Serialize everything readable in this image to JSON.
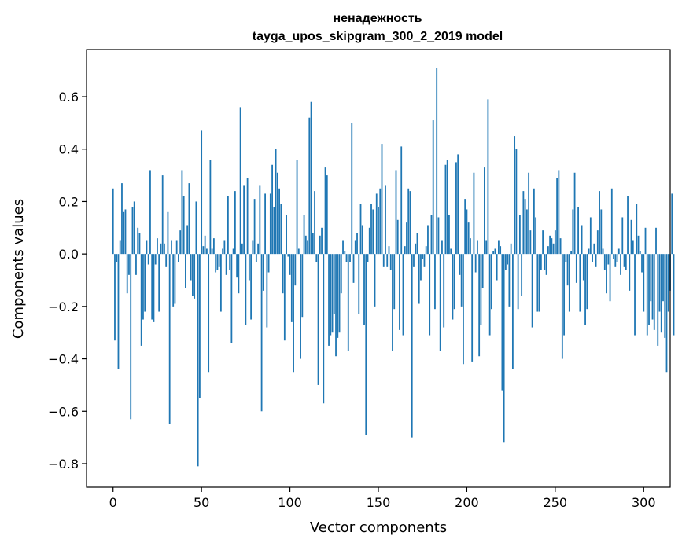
{
  "chart_data": {
    "type": "bar",
    "title": "ненадежность",
    "subtitle": "tayga_upos_skipgram_300_2_2019 model",
    "xlabel": "Vector components",
    "ylabel": "Components values",
    "xlim": [
      -15,
      315
    ],
    "ylim": [
      -0.89,
      0.78
    ],
    "xticks": [
      0,
      50,
      100,
      150,
      200,
      250,
      300
    ],
    "xtick_labels": [
      "0",
      "50",
      "100",
      "150",
      "200",
      "250",
      "300"
    ],
    "yticks": [
      -0.8,
      -0.6,
      -0.4,
      -0.2,
      0.0,
      0.2,
      0.4,
      0.6
    ],
    "ytick_labels": [
      "−0.8",
      "−0.6",
      "−0.4",
      "−0.2",
      "0.0",
      "0.2",
      "0.4",
      "0.6"
    ],
    "grid": false,
    "bar_color": "#1f77b4",
    "values": [
      0.25,
      -0.33,
      -0.03,
      -0.44,
      0.05,
      0.27,
      0.16,
      0.17,
      -0.15,
      -0.08,
      -0.63,
      0.18,
      0.2,
      -0.08,
      0.1,
      0.08,
      -0.35,
      -0.25,
      -0.22,
      0.05,
      -0.04,
      0.32,
      -0.25,
      -0.26,
      -0.04,
      0.06,
      -0.22,
      0.04,
      0.3,
      0.04,
      -0.05,
      0.16,
      -0.65,
      0.05,
      -0.2,
      -0.19,
      0.05,
      -0.03,
      0.09,
      0.32,
      0.22,
      -0.13,
      0.11,
      0.27,
      -0.1,
      -0.16,
      -0.17,
      0.2,
      -0.81,
      -0.55,
      0.47,
      0.03,
      0.07,
      0.02,
      -0.45,
      0.36,
      0.02,
      0.06,
      -0.07,
      -0.06,
      -0.05,
      -0.22,
      0.02,
      0.05,
      -0.08,
      0.22,
      -0.06,
      -0.34,
      0.02,
      0.24,
      -0.09,
      -0.15,
      0.56,
      0.04,
      0.26,
      -0.27,
      0.29,
      -0.1,
      -0.25,
      0.05,
      0.21,
      -0.03,
      0.04,
      0.26,
      -0.6,
      -0.14,
      0.23,
      -0.28,
      -0.07,
      0.23,
      0.34,
      0.18,
      0.4,
      0.31,
      0.25,
      0.19,
      -0.15,
      -0.33,
      0.15,
      -0.01,
      -0.08,
      -0.26,
      -0.45,
      -0.12,
      0.36,
      0.02,
      -0.4,
      -0.24,
      0.15,
      0.07,
      0.05,
      0.52,
      0.58,
      0.08,
      0.24,
      -0.03,
      -0.5,
      0.07,
      0.1,
      -0.57,
      0.33,
      0.3,
      -0.35,
      -0.31,
      -0.3,
      -0.23,
      -0.39,
      -0.32,
      -0.3,
      -0.15,
      0.05,
      0.01,
      -0.03,
      -0.37,
      -0.03,
      0.5,
      -0.11,
      0.05,
      0.08,
      -0.23,
      0.19,
      0.11,
      -0.27,
      -0.69,
      -0.03,
      0.1,
      0.19,
      0.17,
      -0.2,
      0.23,
      0.18,
      0.25,
      0.42,
      -0.05,
      0.26,
      -0.05,
      0.03,
      -0.06,
      -0.37,
      -0.21,
      0.32,
      0.13,
      -0.29,
      0.41,
      -0.31,
      0.03,
      0.12,
      0.25,
      0.24,
      -0.7,
      -0.05,
      0.04,
      0.08,
      -0.19,
      -0.1,
      -0.02,
      -0.05,
      0.03,
      0.11,
      -0.31,
      0.15,
      0.51,
      -0.21,
      0.71,
      0.14,
      -0.37,
      0.05,
      -0.28,
      0.34,
      0.36,
      0.15,
      0.02,
      -0.25,
      -0.21,
      0.35,
      0.38,
      -0.08,
      -0.2,
      -0.42,
      0.21,
      0.17,
      0.12,
      0.06,
      -0.41,
      0.31,
      -0.07,
      0.05,
      -0.39,
      -0.27,
      -0.13,
      0.33,
      0.05,
      0.59,
      -0.31,
      -0.21,
      0.01,
      0.02,
      -0.1,
      0.05,
      0.03,
      -0.52,
      -0.72,
      -0.06,
      -0.04,
      -0.2,
      0.04,
      -0.44,
      0.45,
      0.4,
      -0.21,
      0.15,
      -0.16,
      0.24,
      0.21,
      0.17,
      0.31,
      0.09,
      -0.28,
      0.25,
      0.14,
      -0.22,
      -0.22,
      -0.06,
      0.09,
      -0.06,
      -0.08,
      0.03,
      0.07,
      0.06,
      0.04,
      0.09,
      0.29,
      0.32,
      0.06,
      -0.4,
      -0.31,
      -0.03,
      -0.12,
      -0.22,
      0.01,
      0.17,
      0.31,
      -0.11,
      0.18,
      -0.22,
      0.11,
      -0.1,
      -0.27,
      -0.21,
      0.02,
      0.14,
      -0.03,
      0.04,
      -0.05,
      0.09,
      0.24,
      0.17,
      0.02,
      -0.06,
      -0.15,
      -0.04,
      -0.18,
      0.25,
      -0.02,
      -0.05,
      -0.03,
      0.02,
      -0.08,
      0.14,
      -0.05,
      -0.06,
      0.22,
      -0.14,
      0.13,
      0.05,
      -0.31,
      0.19,
      0.07,
      0.01,
      -0.07,
      -0.22,
      0.1,
      -0.31,
      -0.27,
      -0.18,
      -0.25,
      -0.29,
      0.1,
      -0.35,
      -0.22,
      -0.3,
      -0.18,
      -0.32,
      -0.45,
      -0.22,
      -0.14,
      0.23,
      -0.31
    ]
  }
}
